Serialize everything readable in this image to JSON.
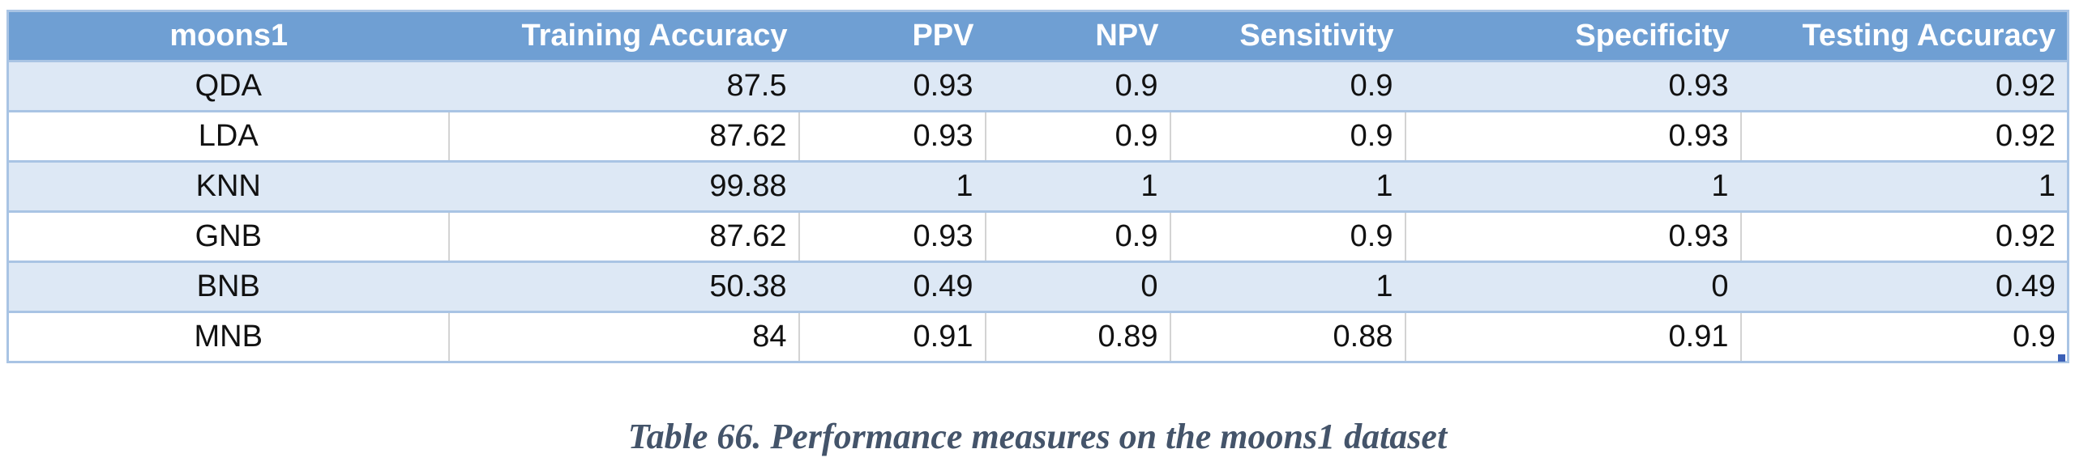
{
  "table": {
    "columns": [
      "moons1",
      "Training Accuracy",
      "PPV",
      "NPV",
      "Sensitivity",
      "Specificity",
      "Testing Accuracy"
    ],
    "rows": [
      [
        "QDA",
        "87.5",
        "0.93",
        "0.9",
        "0.9",
        "0.93",
        "0.92"
      ],
      [
        "LDA",
        "87.62",
        "0.93",
        "0.9",
        "0.9",
        "0.93",
        "0.92"
      ],
      [
        "KNN",
        "99.88",
        "1",
        "1",
        "1",
        "1",
        "1"
      ],
      [
        "GNB",
        "87.62",
        "0.93",
        "0.9",
        "0.9",
        "0.93",
        "0.92"
      ],
      [
        "BNB",
        "50.38",
        "0.49",
        "0",
        "1",
        "0",
        "0.49"
      ],
      [
        "MNB",
        "84",
        "0.91",
        "0.89",
        "0.88",
        "0.91",
        "0.9"
      ]
    ],
    "header_color": "#6f9fd3",
    "band_color": "#dde8f5",
    "border_color": "#a9c4e4"
  },
  "caption": "Table 66. Performance measures on the moons1 dataset",
  "caption_color": "#44546a"
}
